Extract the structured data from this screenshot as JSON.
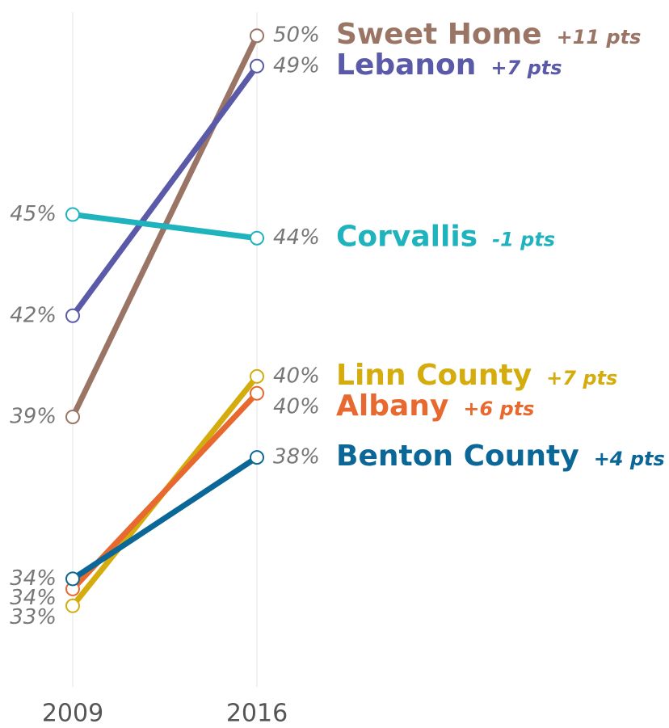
{
  "chart_data": {
    "type": "slope",
    "categories": [
      "2009",
      "2016"
    ],
    "ylim": [
      31,
      51
    ],
    "series": [
      {
        "name": "Sweet Home",
        "color": "#9a7565",
        "values": [
          39.0,
          50.3
        ],
        "value_labels": [
          "39%",
          "50%"
        ],
        "change": "+11 pts"
      },
      {
        "name": "Lebanon",
        "color": "#5a5aa8",
        "values": [
          42.0,
          49.4
        ],
        "value_labels": [
          "42%",
          "49%"
        ],
        "change": "+7 pts"
      },
      {
        "name": "Corvallis",
        "color": "#1fb3bd",
        "values": [
          45.0,
          44.3
        ],
        "value_labels": [
          "45%",
          "44%"
        ],
        "change": "-1 pts"
      },
      {
        "name": "Linn County",
        "color": "#d4ac0d",
        "values": [
          33.4,
          40.2
        ],
        "value_labels": [
          "33%",
          "40%"
        ],
        "change": "+7 pts"
      },
      {
        "name": "Albany",
        "color": "#e8692f",
        "values": [
          33.9,
          39.7
        ],
        "value_labels": [
          "34%",
          "40%"
        ],
        "change": "+6 pts"
      },
      {
        "name": "Benton County",
        "color": "#0b6797",
        "values": [
          34.2,
          37.8
        ],
        "value_labels": [
          "34%",
          "38%"
        ],
        "change": "+4 pts"
      }
    ]
  }
}
